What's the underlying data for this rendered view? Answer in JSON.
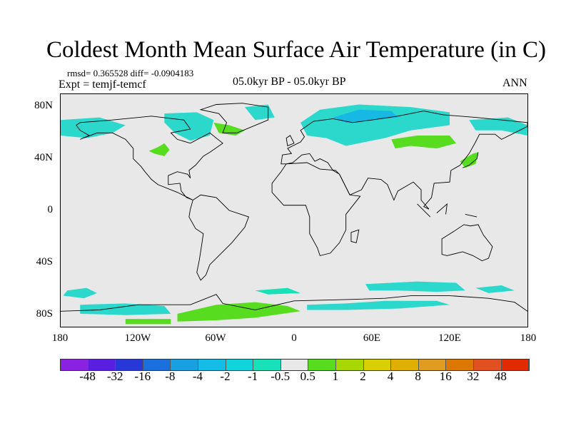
{
  "title": "Coldest Month Mean Surface Air Temperature (in C)",
  "stats": "rmsd= 0.365528 diff= -0.0904183",
  "experiment": "Expt = temjf-temcf",
  "period": "05.0kyr BP - 05.0kyr BP",
  "season": "ANN",
  "lat_labels": [
    "80N",
    "40N",
    "0",
    "40S",
    "80S"
  ],
  "lat_values": [
    80,
    40,
    0,
    -40,
    -80
  ],
  "lon_labels": [
    "180",
    "120W",
    "60W",
    "0",
    "60E",
    "120E",
    "180"
  ],
  "lon_values": [
    -180,
    -120,
    -60,
    0,
    60,
    120,
    180
  ],
  "colorbar": {
    "labels": [
      "-48",
      "-32",
      "-16",
      "-8",
      "-4",
      "-2",
      "-1",
      "-0.5",
      "0.5",
      "1",
      "2",
      "4",
      "8",
      "16",
      "32",
      "48"
    ],
    "colors": [
      "#8a22e0",
      "#5a1ee0",
      "#2838d8",
      "#1a70dc",
      "#18a0e0",
      "#14bce6",
      "#10d4dc",
      "#18e0b8",
      "#e8e8e8",
      "#58dc20",
      "#a8d800",
      "#d8d000",
      "#e0b000",
      "#e09c20",
      "#dc7800",
      "#e05020",
      "#e02a00"
    ]
  }
}
